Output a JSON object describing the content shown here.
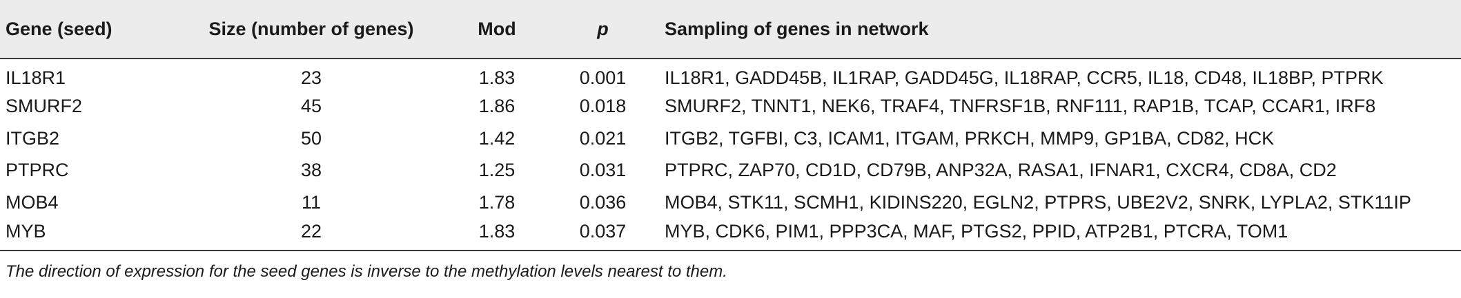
{
  "table": {
    "headers": {
      "gene": "Gene (seed)",
      "size": "Size (number of genes)",
      "mod": "Mod",
      "p": "p",
      "sampling": "Sampling of genes in network"
    },
    "rows": [
      {
        "gene": "IL18R1",
        "size": "23",
        "mod": "1.83",
        "p": "0.001",
        "sampling": "IL18R1, GADD45B, IL1RAP, GADD45G, IL18RAP, CCR5, IL18, CD48, IL18BP, PTPRK"
      },
      {
        "gene": "SMURF2",
        "size": "45",
        "mod": "1.86",
        "p": "0.018",
        "sampling": "SMURF2, TNNT1, NEK6, TRAF4, TNFRSF1B, RNF111, RAP1B, TCAP, CCAR1, IRF8"
      },
      {
        "gene": "ITGB2",
        "size": "50",
        "mod": "1.42",
        "p": "0.021",
        "sampling": "ITGB2, TGFBI, C3, ICAM1, ITGAM, PRKCH, MMP9, GP1BA, CD82, HCK"
      },
      {
        "gene": "PTPRC",
        "size": "38",
        "mod": "1.25",
        "p": "0.031",
        "sampling": "PTPRC, ZAP70, CD1D, CD79B, ANP32A, RASA1, IFNAR1, CXCR4, CD8A, CD2"
      },
      {
        "gene": "MOB4",
        "size": "11",
        "mod": "1.78",
        "p": "0.036",
        "sampling": "MOB4, STK11, SCMH1, KIDINS220, EGLN2, PTPRS, UBE2V2, SNRK, LYPLA2, STK11IP"
      },
      {
        "gene": "MYB",
        "size": "22",
        "mod": "1.83",
        "p": "0.037",
        "sampling": "MYB, CDK6, PIM1, PPP3CA, MAF, PTGS2, PPID, ATP2B1, PTCRA, TOM1"
      }
    ]
  },
  "footnote": "The direction of expression for the seed genes is inverse to the methylation levels nearest to them."
}
